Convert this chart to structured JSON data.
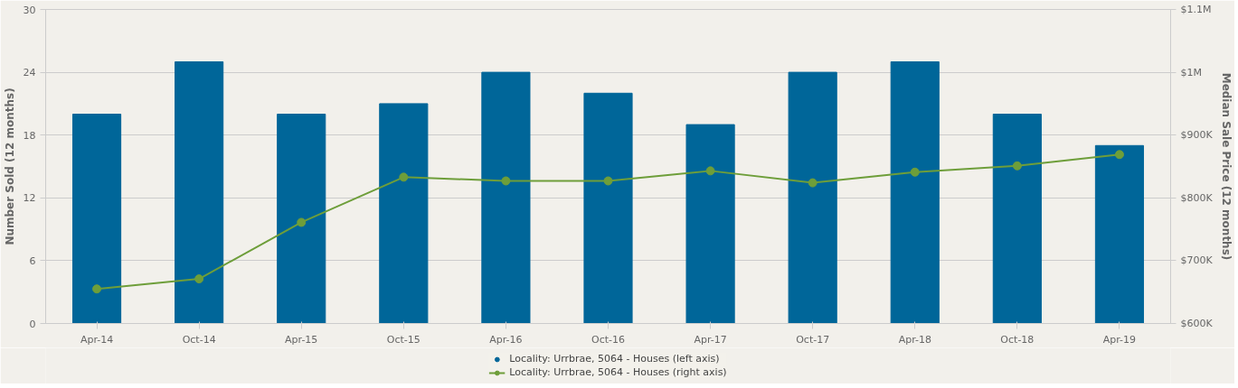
{
  "chart_data": {
    "type": "bar",
    "categories": [
      "Apr-14",
      "Oct-14",
      "Apr-15",
      "Oct-15",
      "Apr-16",
      "Oct-16",
      "Apr-17",
      "Oct-17",
      "Apr-18",
      "Oct-18",
      "Apr-19"
    ],
    "ylabel": "Number Sold (12 months)",
    "y2label": "Median Sale Price (12 months)",
    "ylim": [
      0,
      30
    ],
    "yticks": [
      0,
      6,
      12,
      18,
      24,
      30
    ],
    "y2lim": [
      600000,
      1100000
    ],
    "y2ticks": [
      {
        "value": 600000,
        "label": "$600K"
      },
      {
        "value": 700000,
        "label": "$700K"
      },
      {
        "value": 800000,
        "label": "$800K"
      },
      {
        "value": 900000,
        "label": "$900K"
      },
      {
        "value": 1000000,
        "label": "$1M"
      },
      {
        "value": 1100000,
        "label": "$1.1M"
      }
    ],
    "grid": "y",
    "legend": "bottom",
    "series": [
      {
        "name": "Locality: Urrbrae, 5064 - Houses (left axis)",
        "type": "bar",
        "color": "#006699",
        "values": [
          20,
          25,
          20,
          21,
          24,
          22,
          19,
          24,
          25,
          20,
          17
        ]
      },
      {
        "name": "Locality: Urrbrae, 5064 - Houses (right axis)",
        "type": "line",
        "axis": "y2",
        "color": "#6e9e3a",
        "marker": "circle",
        "line_style": "solid",
        "values": [
          655000,
          671000,
          761000,
          833000,
          827000,
          827000,
          843000,
          824000,
          841000,
          851000,
          869000
        ]
      }
    ]
  }
}
